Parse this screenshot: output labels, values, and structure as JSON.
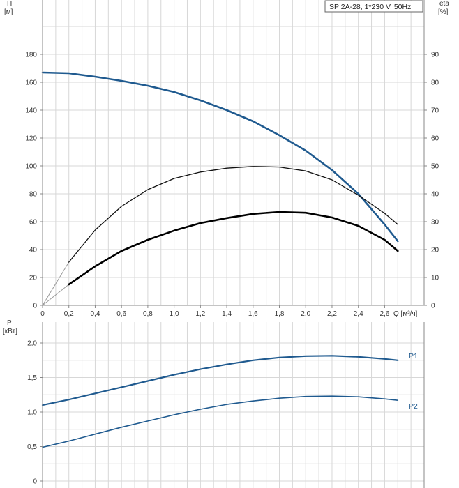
{
  "chart_data": [
    {
      "type": "line",
      "title": "SP 2A-28, 1*230 V, 50Hz",
      "xlabel": "Q [м³/ч]",
      "x_ticks": [
        "0",
        "0,2",
        "0,4",
        "0,6",
        "0,8",
        "1,0",
        "1,2",
        "1,4",
        "1,6",
        "1,8",
        "2,0",
        "2,2",
        "2,4",
        "2,6"
      ],
      "xlim": [
        0,
        2.9
      ],
      "y_axis_left": {
        "label_top": "H",
        "label_unit": "[м]",
        "ylim": [
          0,
          200
        ],
        "ticks": [
          "0",
          "20",
          "40",
          "60",
          "80",
          "100",
          "120",
          "140",
          "160",
          "180"
        ]
      },
      "y_axis_right": {
        "label_top": "eta",
        "label_unit": "[%]",
        "ylim": [
          0,
          100
        ],
        "ticks": [
          "0",
          "10",
          "20",
          "30",
          "40",
          "50",
          "60",
          "70",
          "80",
          "90"
        ]
      },
      "grid": true,
      "series": [
        {
          "axis": "left",
          "color": "#1f5a8f",
          "x": [
            0,
            0.2,
            0.4,
            0.6,
            0.8,
            1.0,
            1.2,
            1.4,
            1.6,
            1.8,
            2.0,
            2.2,
            2.4,
            2.6,
            2.7
          ],
          "values": [
            167,
            166.5,
            164,
            161,
            157.5,
            153,
            147,
            140,
            132,
            122,
            111,
            97,
            80,
            58,
            46
          ]
        },
        {
          "axis": "right",
          "color": "#111111",
          "x": [
            0.2,
            0.4,
            0.6,
            0.8,
            1.0,
            1.2,
            1.4,
            1.6,
            1.8,
            2.0,
            2.2,
            2.4,
            2.6,
            2.7
          ],
          "values": [
            15.5,
            27,
            35.5,
            41.5,
            45.5,
            47.8,
            49.2,
            49.8,
            49.6,
            48.2,
            45,
            39.5,
            33,
            29
          ],
          "extrapolated_from_origin": true
        },
        {
          "axis": "right",
          "color": "#000000",
          "x": [
            0.2,
            0.4,
            0.6,
            0.8,
            1.0,
            1.2,
            1.4,
            1.6,
            1.8,
            2.0,
            2.2,
            2.4,
            2.6,
            2.7
          ],
          "values": [
            7.5,
            14,
            19.5,
            23.5,
            26.8,
            29.5,
            31.3,
            32.8,
            33.5,
            33.2,
            31.5,
            28.5,
            23.5,
            19.5
          ],
          "extrapolated_from_origin": true
        }
      ]
    },
    {
      "type": "line",
      "xlim": [
        0,
        2.9
      ],
      "y_axis_left": {
        "label_top": "P",
        "label_unit": "[кВт]",
        "ylim": [
          0,
          2.0
        ],
        "ticks": [
          "0",
          "0,5",
          "1,0",
          "1,5",
          "2,0"
        ]
      },
      "grid": true,
      "series": [
        {
          "name": "P1",
          "color": "#1f5a8f",
          "x": [
            0,
            0.2,
            0.4,
            0.6,
            0.8,
            1.0,
            1.2,
            1.4,
            1.6,
            1.8,
            2.0,
            2.2,
            2.4,
            2.6,
            2.7
          ],
          "values": [
            1.1,
            1.18,
            1.27,
            1.36,
            1.45,
            1.54,
            1.62,
            1.69,
            1.75,
            1.79,
            1.81,
            1.815,
            1.8,
            1.77,
            1.75
          ]
        },
        {
          "name": "P2",
          "color": "#1f5a8f",
          "x": [
            0,
            0.2,
            0.4,
            0.6,
            0.8,
            1.0,
            1.2,
            1.4,
            1.6,
            1.8,
            2.0,
            2.2,
            2.4,
            2.6,
            2.7
          ],
          "values": [
            0.49,
            0.58,
            0.68,
            0.78,
            0.87,
            0.96,
            1.04,
            1.11,
            1.16,
            1.2,
            1.225,
            1.23,
            1.22,
            1.19,
            1.17
          ]
        }
      ]
    }
  ]
}
